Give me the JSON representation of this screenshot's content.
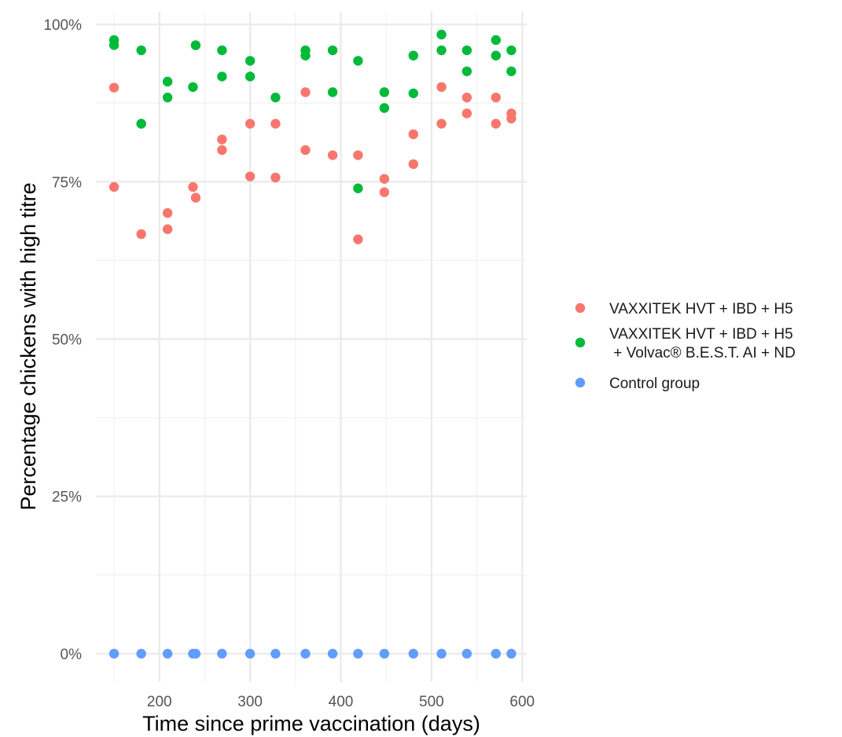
{
  "chart_data": {
    "type": "scatter",
    "xlabel": "Time since prime vaccination (days)",
    "ylabel": "Percentage chickens with high titre",
    "xlim": [
      130,
      605
    ],
    "ylim": [
      -0.045,
      1.02
    ],
    "x_ticks": [
      200,
      300,
      400,
      500,
      600
    ],
    "x_tick_labels": [
      "200",
      "300",
      "400",
      "500",
      "600"
    ],
    "y_ticks": [
      0,
      0.25,
      0.5,
      0.75,
      1.0
    ],
    "y_tick_labels": [
      "0%",
      "25%",
      "50%",
      "75%",
      "100%"
    ],
    "grid": true,
    "legend_position": "right",
    "series": [
      {
        "name": "VAXXITEK HVT + IBD + H5",
        "color": "#F8766D",
        "points": [
          [
            150,
            0.8995
          ],
          [
            150,
            0.7416
          ],
          [
            180,
            0.8421
          ],
          [
            180,
            0.6667
          ],
          [
            209,
            0.7003
          ],
          [
            209,
            0.6745
          ],
          [
            237,
            0.7416
          ],
          [
            240,
            0.7246
          ],
          [
            269,
            0.8171
          ],
          [
            269,
            0.8003
          ],
          [
            300,
            0.8421
          ],
          [
            300,
            0.7584
          ],
          [
            328,
            0.8421
          ],
          [
            328,
            0.7566
          ],
          [
            361,
            0.8922
          ],
          [
            361,
            0.8003
          ],
          [
            391,
            0.7921
          ],
          [
            419,
            0.7921
          ],
          [
            419,
            0.6584
          ],
          [
            448,
            0.7545
          ],
          [
            448,
            0.7333
          ],
          [
            480,
            0.8254
          ],
          [
            480,
            0.7779
          ],
          [
            511,
            0.9004
          ],
          [
            511,
            0.8421
          ],
          [
            539,
            0.8838
          ],
          [
            539,
            0.8585
          ],
          [
            571,
            0.8838
          ],
          [
            571,
            0.8421
          ],
          [
            588,
            0.8585
          ],
          [
            588,
            0.8504
          ]
        ]
      },
      {
        "name": "VAXXITEK HVT + IBD + H5\n + Volvac® B.E.S.T. AI + ND",
        "color": "#00BA38",
        "points": [
          [
            150,
            0.9751
          ],
          [
            150,
            0.9671
          ],
          [
            180,
            0.9588
          ],
          [
            180,
            0.8421
          ],
          [
            209,
            0.9091
          ],
          [
            209,
            0.8838
          ],
          [
            237,
            0.9004
          ],
          [
            240,
            0.9668
          ],
          [
            269,
            0.9588
          ],
          [
            269,
            0.9171
          ],
          [
            300,
            0.9421
          ],
          [
            300,
            0.9171
          ],
          [
            328,
            0.8838
          ],
          [
            361,
            0.9588
          ],
          [
            361,
            0.9504
          ],
          [
            391,
            0.9588
          ],
          [
            391,
            0.8922
          ],
          [
            419,
            0.9421
          ],
          [
            419,
            0.7394
          ],
          [
            448,
            0.8922
          ],
          [
            448,
            0.8671
          ],
          [
            480,
            0.9504
          ],
          [
            480,
            0.8904
          ],
          [
            511,
            0.9838
          ],
          [
            511,
            0.9588
          ],
          [
            539,
            0.9588
          ],
          [
            539,
            0.9254
          ],
          [
            571,
            0.9751
          ],
          [
            571,
            0.9504
          ],
          [
            588,
            0.9588
          ],
          [
            588,
            0.9254
          ]
        ]
      },
      {
        "name": "Control group",
        "color": "#619CFF",
        "points": [
          [
            150,
            0
          ],
          [
            180,
            0
          ],
          [
            209,
            0
          ],
          [
            237,
            0
          ],
          [
            240,
            0
          ],
          [
            269,
            0
          ],
          [
            300,
            0
          ],
          [
            328,
            0
          ],
          [
            361,
            0
          ],
          [
            391,
            0
          ],
          [
            419,
            0
          ],
          [
            448,
            0
          ],
          [
            480,
            0
          ],
          [
            511,
            0
          ],
          [
            539,
            0
          ],
          [
            571,
            0
          ],
          [
            588,
            0
          ]
        ]
      }
    ]
  }
}
